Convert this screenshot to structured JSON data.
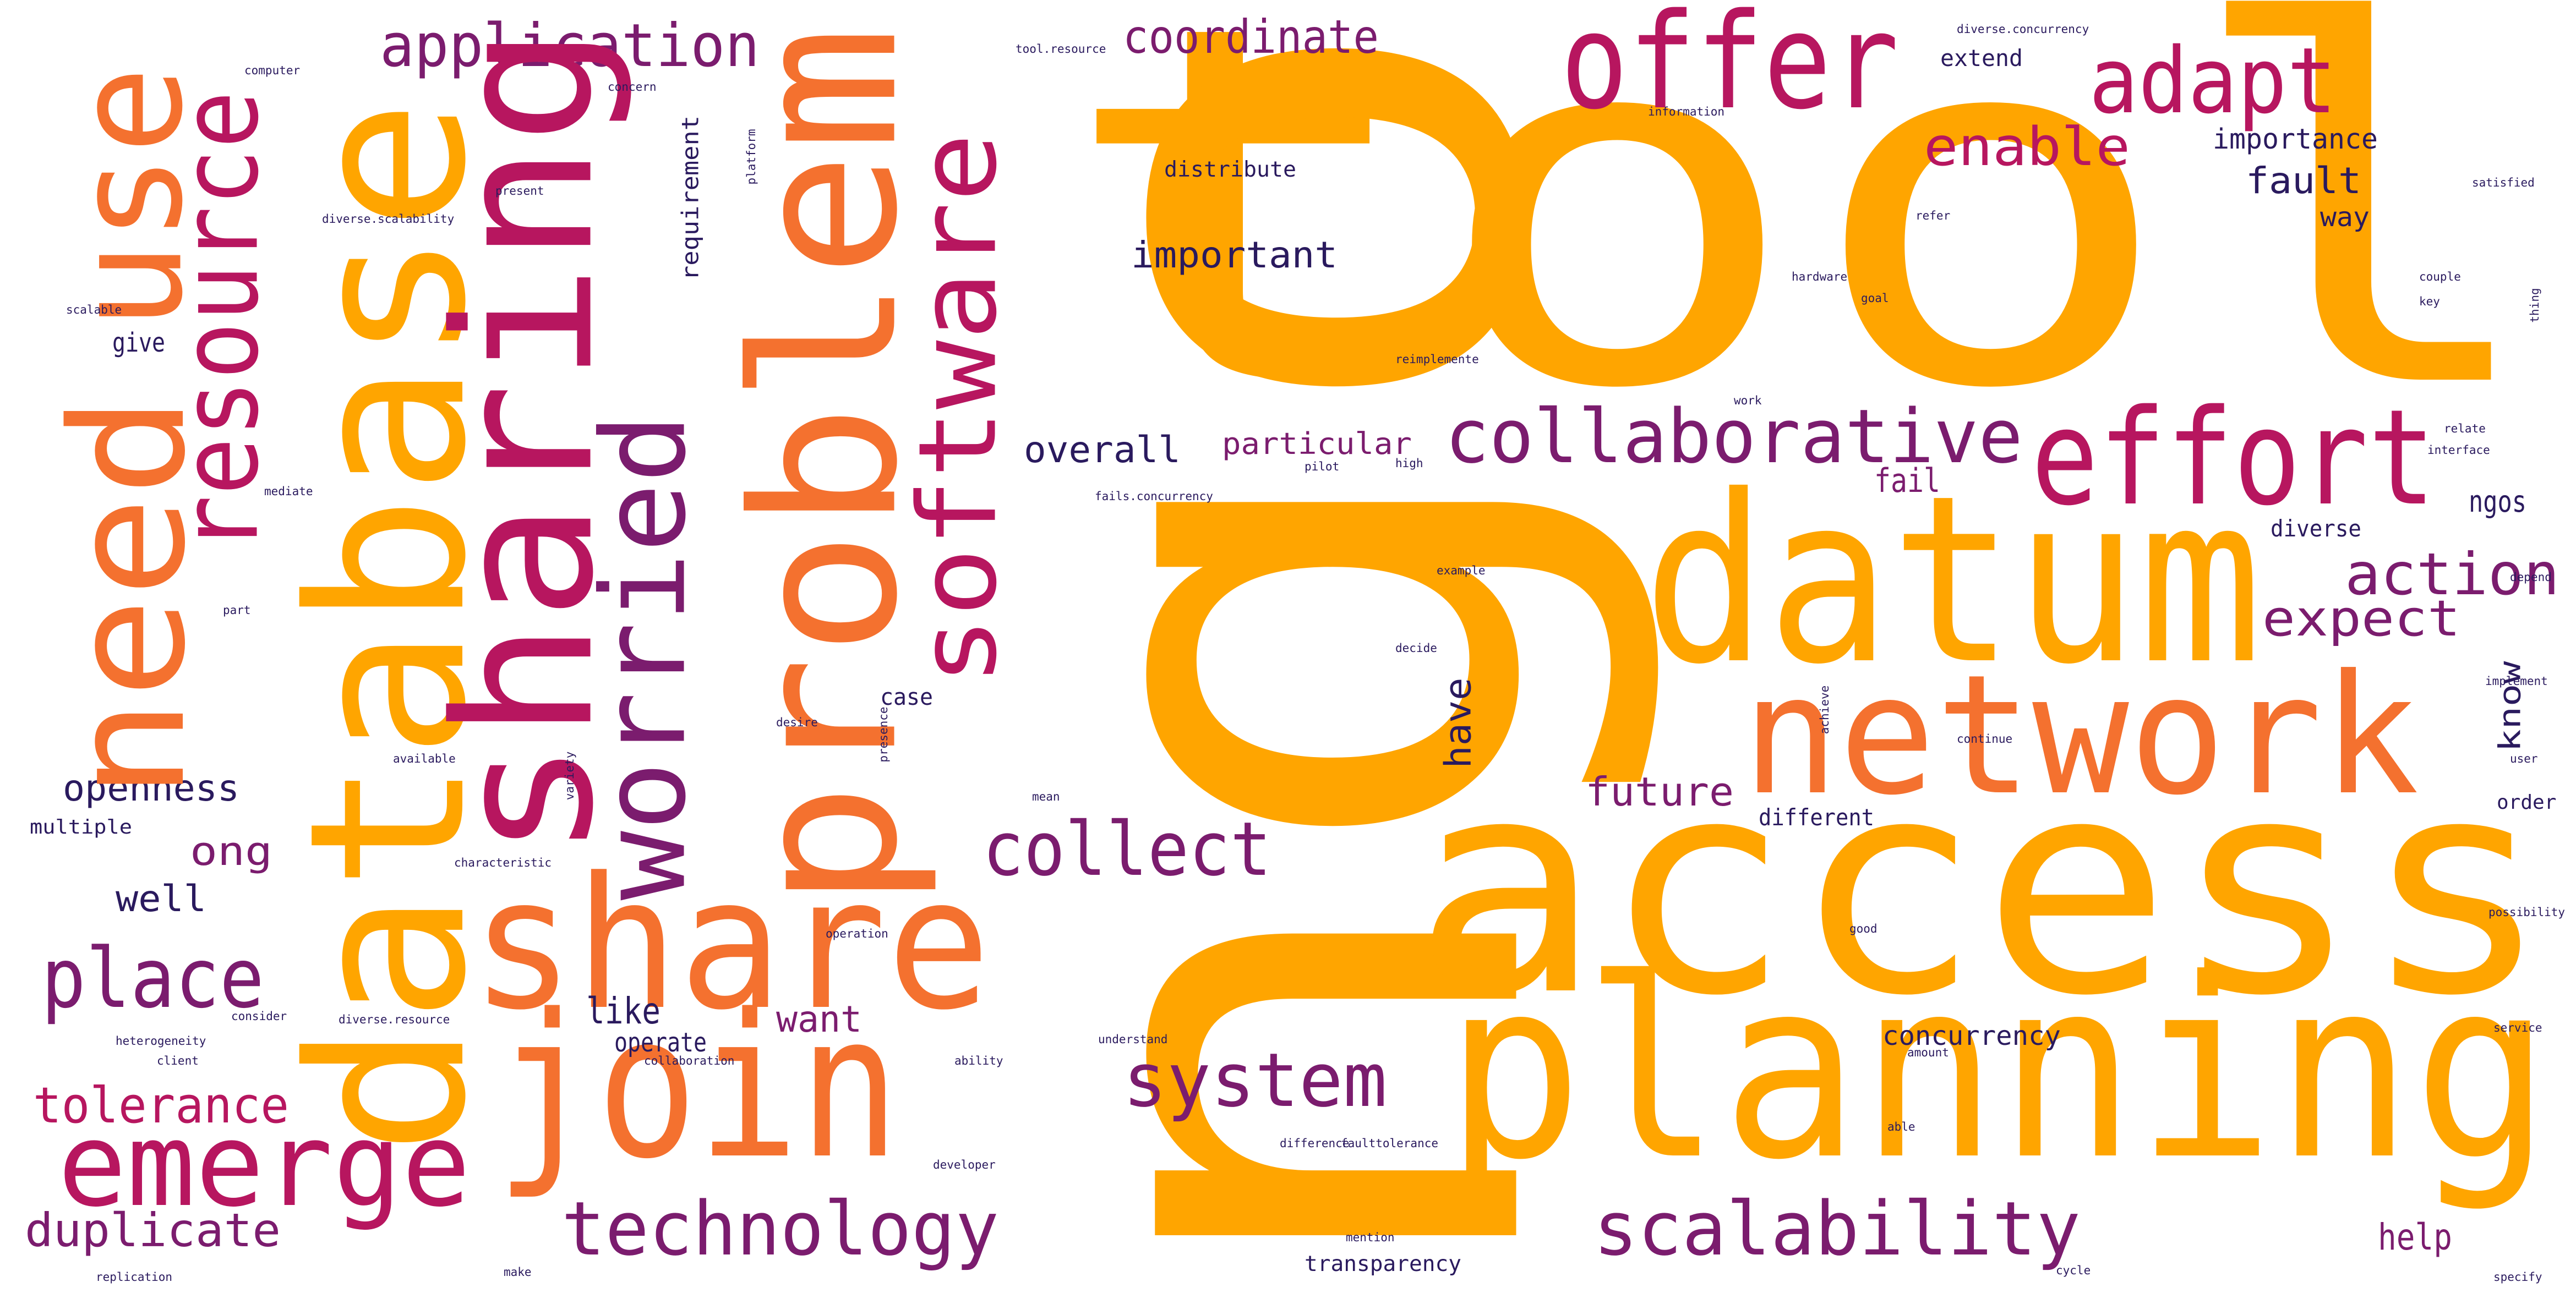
{
  "words": [
    "tool",
    "ngo",
    "access",
    "planning",
    "datum",
    "network",
    "effort",
    "offer",
    "adapt",
    "enable",
    "collaborative",
    "coordinate",
    "application",
    "share",
    "join",
    "emerge",
    "technology",
    "duplicate",
    "tolerance",
    "place",
    "well",
    "ong",
    "openness",
    "multiple",
    "system",
    "collect",
    "scalability",
    "action",
    "expect",
    "future",
    "fail",
    "fault",
    "importance",
    "extend",
    "way",
    "important",
    "overall",
    "particular",
    "ngos",
    "diverse",
    "different",
    "give",
    "concurrency",
    "help",
    "want",
    "like",
    "operate",
    "case",
    "transparency",
    "distribute",
    "database",
    "need",
    "use",
    "resource",
    "sharing",
    "problem",
    "worried",
    "software",
    "requirement",
    "have",
    "know",
    "computer",
    "concern",
    "tool.resource",
    "diverse.concurrency",
    "information",
    "platform",
    "present",
    "diverse.scalability",
    "scalable",
    "refer",
    "hardware",
    "goal",
    "satisfied",
    "couple",
    "key",
    "relate",
    "interface",
    "depend",
    "thing",
    "work",
    "high",
    "pilot",
    "reimplemente",
    "example",
    "decide",
    "desire",
    "presence",
    "achieve",
    "implement",
    "continue",
    "user",
    "available",
    "variety",
    "mean",
    "order",
    "characteristic",
    "possibility",
    "good",
    "operation",
    "consider",
    "diverse.resource",
    "heterogeneity",
    "collaboration",
    "client",
    "understand",
    "ability",
    "amount",
    "able",
    "faulttolerance",
    "difference",
    "developer",
    "mention",
    "replication",
    "make",
    "cycle",
    "specify",
    "part",
    "mediate",
    "fails.concurrency",
    "service"
  ]
}
